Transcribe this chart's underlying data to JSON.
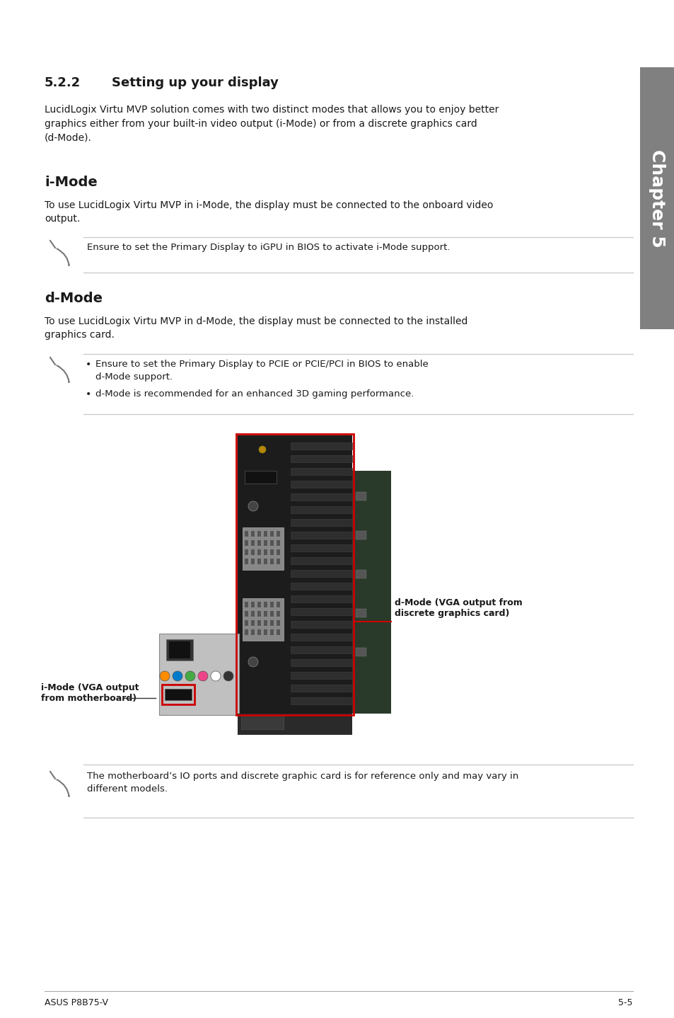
{
  "bg_color": "#ffffff",
  "page_width": 9.54,
  "page_height": 14.38,
  "sidebar_color": "#808080",
  "sidebar_text": "Chapter 5",
  "section_title_num": "5.2.2",
  "section_title_text": "Setting up your display",
  "section_body": "LucidLogix Virtu MVP solution comes with two distinct modes that allows you to enjoy better\ngraphics either from your built-in video output (i-Mode) or from a discrete graphics card\n(d-Mode).",
  "imode_title": "i-Mode",
  "imode_body": "To use LucidLogix Virtu MVP in i-Mode, the display must be connected to the onboard video\noutput.",
  "imode_note": "Ensure to set the Primary Display to iGPU in BIOS to activate i-Mode support.",
  "dmode_title": "d-Mode",
  "dmode_body": "To use LucidLogix Virtu MVP in d-Mode, the display must be connected to the installed\ngraphics card.",
  "dmode_note1": "Ensure to set the Primary Display to PCIE or PCIE/PCI in BIOS to enable\nd-Mode support.",
  "dmode_note2": "d-Mode is recommended for an enhanced 3D gaming performance.",
  "footer_note": "The motherboard’s IO ports and discrete graphic card is for reference only and may vary in\ndifferent models.",
  "footer_left": "ASUS P8B75-V",
  "footer_right": "5-5",
  "dmode_label": "d-Mode (VGA output from\ndiscrete graphics card)",
  "imode_label": "i-Mode (VGA output\nfrom motherboard)",
  "line_color": "#cccccc",
  "text_color": "#1a1a1a"
}
